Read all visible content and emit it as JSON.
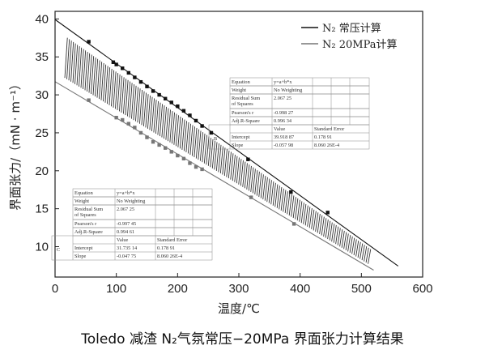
{
  "caption": "Toledo 减渣 N₂气氛常压−20MPa 界面张力计算结果",
  "chart_data": {
    "type": "scatter",
    "xlabel": "温度/℃",
    "ylabel": "界面张力/（mN · m⁻¹）",
    "xlim": [
      0,
      600
    ],
    "ylim": [
      6,
      41
    ],
    "xticks": [
      0,
      100,
      200,
      300,
      400,
      500,
      600
    ],
    "yticks": [
      10,
      15,
      20,
      25,
      30,
      35,
      40
    ],
    "grid": false,
    "legend_position": "top-right",
    "series": [
      {
        "name": "N₂ 常压计算",
        "color": "#111111",
        "fit": {
          "intercept": 39.91887,
          "slope": -0.05798
        },
        "x": [
          55,
          95,
          100,
          110,
          120,
          130,
          140,
          150,
          160,
          170,
          180,
          190,
          200,
          210,
          220,
          230,
          240,
          255,
          315,
          385,
          445
        ],
        "y": [
          37.0,
          34.3,
          34.0,
          33.5,
          32.9,
          32.3,
          31.7,
          31.1,
          30.5,
          30.0,
          29.5,
          29.0,
          28.5,
          27.9,
          27.3,
          26.6,
          25.9,
          25.0,
          21.5,
          17.2,
          14.5
        ]
      },
      {
        "name": "N₂ 20MPa计算",
        "color": "#777777",
        "fit": {
          "intercept": 31.73514,
          "slope": -0.04775
        },
        "x": [
          55,
          100,
          110,
          120,
          130,
          140,
          150,
          160,
          170,
          180,
          190,
          200,
          210,
          220,
          230,
          240,
          320,
          390
        ],
        "y": [
          29.3,
          27.0,
          26.7,
          26.2,
          25.7,
          25.0,
          24.4,
          23.8,
          23.4,
          23.0,
          22.5,
          22.0,
          21.6,
          21.0,
          20.5,
          20.2,
          16.5,
          13.0
        ]
      }
    ],
    "fit_tables": [
      {
        "letter": "B",
        "rows": [
          [
            "Equation",
            "y=a+b*x"
          ],
          [
            "Weight",
            "No Weighting"
          ],
          [
            "Residual Sum\nof Squares",
            "2.067 25"
          ],
          [
            "Pearson's r",
            "-0.998 27"
          ],
          [
            "Adj.R-Square",
            "0.996 34"
          ]
        ],
        "coef_header": [
          "Value",
          "Standard Error"
        ],
        "coef_rows": [
          [
            "Intercept",
            "39.918 87",
            "0.178 91"
          ],
          [
            "Slope",
            "-0.057 98",
            "8.060 26E-4"
          ]
        ]
      },
      {
        "letter": "C",
        "rows": [
          [
            "Equation",
            "y=a+b*x"
          ],
          [
            "Weight",
            "No Weighting"
          ],
          [
            "Residual Sum\nof Squares",
            "2.067 25"
          ],
          [
            "Pearson's r",
            "-0.997 45"
          ],
          [
            "Adj.R-Square",
            "0.994 61"
          ]
        ],
        "coef_header": [
          "Value",
          "Standard Error"
        ],
        "coef_rows": [
          [
            "Intercept",
            "31.735 14",
            "0.178 91"
          ],
          [
            "Slope",
            "-0.047 75",
            "8.060 26E-4"
          ]
        ]
      }
    ]
  }
}
